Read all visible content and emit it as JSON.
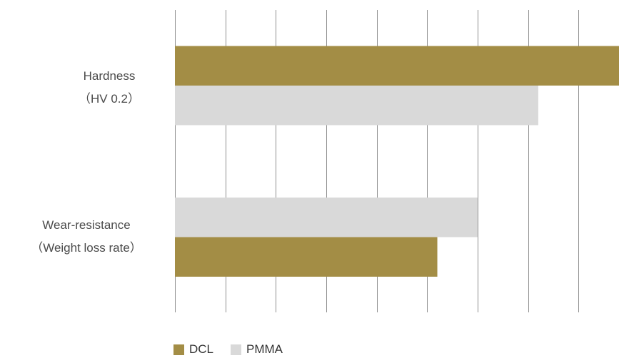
{
  "chart_data": {
    "type": "bar",
    "orientation": "horizontal",
    "categories": [
      {
        "line1": "Hardness",
        "line2": "（HV 0.2）"
      },
      {
        "line1": "Wear-resistance",
        "line2": "（Weight loss rate）"
      }
    ],
    "series": [
      {
        "name": "DCL",
        "color": "#a38d45",
        "values": [
          8.8,
          5.2
        ]
      },
      {
        "name": "PMMA",
        "color": "#d9d9d9",
        "values": [
          7.2,
          6.0
        ]
      }
    ],
    "xlim": [
      0,
      8.8
    ],
    "tick_step": 1,
    "grid": true,
    "tick_labels_shown": false,
    "legend_position": "bottom-left"
  }
}
